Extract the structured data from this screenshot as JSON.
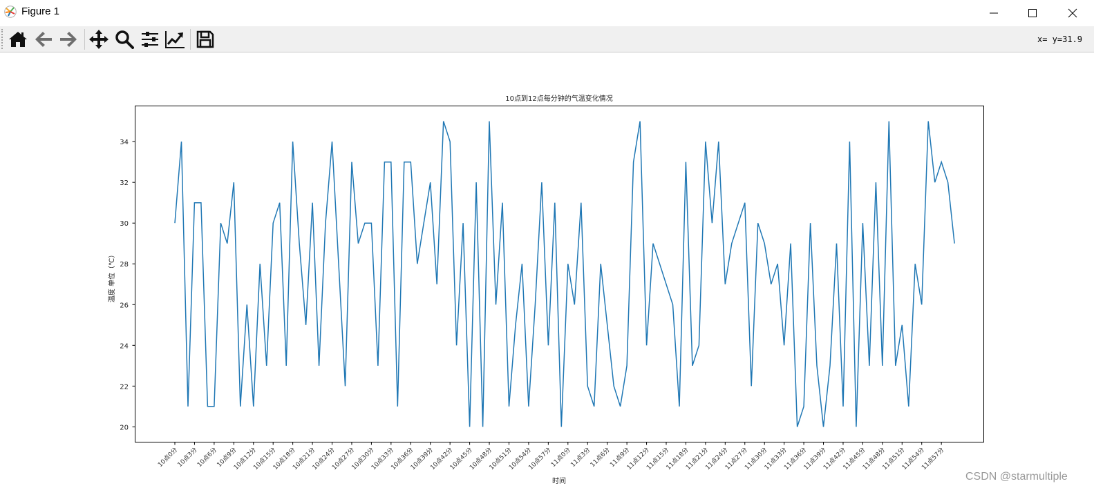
{
  "window": {
    "title": "Figure 1",
    "controls": {
      "minimize": "minimize-icon",
      "maximize": "maximize-icon",
      "close": "close-icon"
    }
  },
  "toolbar": {
    "buttons": [
      {
        "name": "home",
        "icon": "home-icon"
      },
      {
        "name": "back",
        "icon": "arrow-left-icon"
      },
      {
        "name": "forward",
        "icon": "arrow-right-icon"
      },
      {
        "name": "pan",
        "icon": "move-icon"
      },
      {
        "name": "zoom",
        "icon": "magnifier-icon"
      },
      {
        "name": "configure-subplots",
        "icon": "sliders-icon"
      },
      {
        "name": "edit-axis",
        "icon": "line-chart-icon"
      },
      {
        "name": "save",
        "icon": "floppy-disk-icon"
      }
    ],
    "coordinates": "x= y=31.9"
  },
  "watermark": "CSDN @starmultiple",
  "colors": {
    "line": "#1f77b4",
    "axes": "#000000",
    "toolbar_bg": "#f0f0f0"
  },
  "chart_data": {
    "type": "line",
    "title": "10点到12点每分钟的气温变化情况",
    "xlabel": "时间",
    "ylabel": "温度 单位（℃）",
    "ylim": [
      19.25,
      35.75
    ],
    "yticks": [
      20,
      22,
      24,
      26,
      28,
      30,
      32,
      34
    ],
    "grid": false,
    "legend": null,
    "xtick_step": 3,
    "xtick_labels": [
      "10点0分",
      "10点3分",
      "10点6分",
      "10点9分",
      "10点12分",
      "10点15分",
      "10点18分",
      "10点21分",
      "10点24分",
      "10点27分",
      "10点30分",
      "10点33分",
      "10点36分",
      "10点39分",
      "10点42分",
      "10点45分",
      "10点48分",
      "10点51分",
      "10点54分",
      "10点57分",
      "11点0分",
      "11点3分",
      "11点6分",
      "11点9分",
      "11点12分",
      "11点15分",
      "11点18分",
      "11点21分",
      "11点24分",
      "11点27分",
      "11点30分",
      "11点33分",
      "11点36分",
      "11点39分",
      "11点42分",
      "11点45分",
      "11点48分",
      "11点51分",
      "11点54分",
      "11点57分"
    ],
    "x_count": 120,
    "series": [
      {
        "name": "temperature",
        "color": "#1f77b4",
        "values": [
          30,
          34,
          21,
          31,
          31,
          21,
          21,
          30,
          29,
          32,
          21,
          26,
          21,
          28,
          23,
          30,
          31,
          23,
          34,
          29,
          25,
          31,
          23,
          30,
          34,
          28,
          22,
          33,
          29,
          30,
          30,
          23,
          33,
          33,
          21,
          33,
          33,
          28,
          30,
          32,
          27,
          35,
          34,
          24,
          30,
          20,
          32,
          20,
          35,
          26,
          31,
          21,
          25,
          28,
          21,
          26,
          32,
          24,
          31,
          20,
          28,
          26,
          31,
          22,
          21,
          28,
          25,
          22,
          21,
          23,
          33,
          35,
          24,
          29,
          28,
          27,
          26,
          21,
          33,
          23,
          24,
          34,
          30,
          34,
          27,
          29,
          30,
          31,
          22,
          30,
          29,
          27,
          28,
          24,
          29,
          20,
          21,
          30,
          23,
          20,
          23,
          29,
          21,
          34,
          20,
          30,
          23,
          32,
          23,
          35,
          23,
          25,
          21,
          28,
          26,
          35,
          32,
          33,
          32,
          29
        ]
      }
    ]
  }
}
